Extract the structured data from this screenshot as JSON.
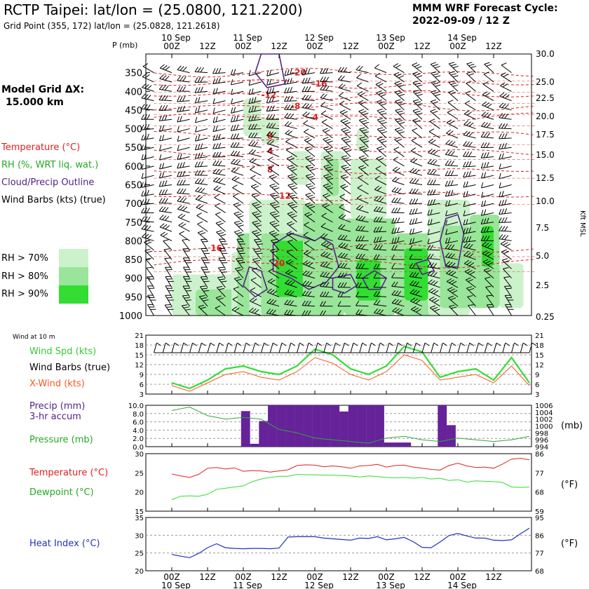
{
  "header": {
    "title": "RCTP Taipei:  lat/lon = (25.0800, 121.2200)",
    "subtitle": "Grid Point (355, 172) lat/lon = (25.0828, 121.2618)",
    "forecast_label": "MMM WRF Forecast Cycle:",
    "forecast_cycle": "2022-09-09 / 12  Z"
  },
  "side": {
    "grid_dx_label": "Model Grid ΔX:",
    "grid_dx_value": " 15.000 km",
    "legend_temperature": "Temperature (°C)",
    "legend_rh": "RH (%, WRT liq. wat.)",
    "legend_cloud": "Cloud/Precip Outline",
    "legend_wind": "Wind Barbs (kts) (true)",
    "rh_levels": [
      "RH > 70%",
      "RH > 80%",
      "RH > 90%"
    ],
    "colors": {
      "temperature": "#dd2222",
      "rh": "#22aa22",
      "cloud": "#552288",
      "wind": "#000000",
      "rh70": "#ccf2cc",
      "rh80": "#99e599",
      "rh90": "#33dd33"
    }
  },
  "time_axis": {
    "times": [
      "00Z",
      "12Z",
      "00Z",
      "12Z",
      "00Z",
      "12Z",
      "00Z",
      "12Z",
      "00Z",
      "12Z"
    ],
    "days": [
      "10 Sep",
      "11 Sep",
      "12 Sep",
      "13 Sep",
      "14 Sep"
    ]
  },
  "chart_data": [
    {
      "type": "heatmap",
      "ylabel_left": "P (mb)",
      "ylabel_right": "Kft MSL",
      "pressure_ticks": [
        "350",
        "400",
        "450",
        "500",
        "550",
        "600",
        "650",
        "700",
        "750",
        "800",
        "850",
        "900",
        "950",
        "1000"
      ],
      "height_ticks": [
        "30.0",
        "25.0",
        "22.5",
        "20.0",
        "17.5",
        "15.0",
        "12.5",
        "10.0",
        "7.5",
        "5.0",
        "2.5",
        "0.25"
      ],
      "temperature_labels": [
        "-20",
        "-16",
        "-12",
        "-8",
        "-4",
        "0",
        "4",
        "8",
        "12",
        "16",
        "20"
      ]
    },
    {
      "type": "line",
      "panel_title": "Wind at 10 m",
      "labels": [
        "Wind Spd (kts)",
        "Wind Barbs (true)",
        "X-Wind (kts)"
      ],
      "ylim": [
        0,
        21
      ],
      "yticks": [
        "21",
        "18",
        "15",
        "12",
        "9",
        "6",
        "3"
      ],
      "x": [
        0,
        6,
        12,
        18,
        24,
        30,
        36,
        42,
        48,
        54,
        60,
        66,
        72,
        78,
        84,
        90,
        96,
        102,
        108,
        114,
        120
      ],
      "series": [
        {
          "name": "Wind Spd (kts)",
          "color": "#33dd33",
          "values": [
            4,
            2,
            5,
            9,
            10,
            8,
            7,
            10,
            16,
            14,
            9,
            7,
            10,
            17,
            15,
            6,
            8,
            9,
            5,
            13,
            4
          ]
        },
        {
          "name": "X-Wind (kts)",
          "color": "#ff5522",
          "values": [
            3,
            1,
            4,
            7,
            8,
            6,
            5,
            8,
            13,
            11,
            7,
            5,
            8,
            14,
            12,
            5,
            6,
            7,
            4,
            10,
            3
          ]
        }
      ]
    },
    {
      "type": "bar",
      "labels": [
        "Precip (mm)",
        "3-hr accum",
        "Pressure (mb)"
      ],
      "ylim": [
        0,
        10
      ],
      "yticks_left": [
        "10.0",
        "8.0",
        "6.0",
        "4.0",
        "2.0",
        "0.0"
      ],
      "yticks_right": [
        "1006",
        "1004",
        "1002",
        "1000",
        "998",
        "996",
        "994"
      ],
      "right_unit": "(mb)",
      "bars": [
        {
          "x": 24,
          "value": 8.6
        },
        {
          "x": 27,
          "value": 0.7
        },
        {
          "x": 30,
          "value": 6.2
        },
        {
          "x": 33,
          "value": 10.0
        },
        {
          "x": 36,
          "value": 10.0
        },
        {
          "x": 39,
          "value": 10.0
        },
        {
          "x": 42,
          "value": 10.0
        },
        {
          "x": 45,
          "value": 10.0
        },
        {
          "x": 48,
          "value": 10.0
        },
        {
          "x": 51,
          "value": 10.0
        },
        {
          "x": 54,
          "value": 10.0
        },
        {
          "x": 57,
          "value": 8.5
        },
        {
          "x": 60,
          "value": 10.0
        },
        {
          "x": 63,
          "value": 10.0
        },
        {
          "x": 66,
          "value": 10.0
        },
        {
          "x": 69,
          "value": 10.0
        },
        {
          "x": 72,
          "value": 1.0
        },
        {
          "x": 75,
          "value": 1.0
        },
        {
          "x": 78,
          "value": 1.0
        },
        {
          "x": 84,
          "value": 0.0
        },
        {
          "x": 90,
          "value": 10.0
        },
        {
          "x": 93,
          "value": 5.2
        }
      ],
      "pressure": {
        "name": "Pressure (mb)",
        "color": "#33aa33",
        "x": [
          0,
          6,
          12,
          18,
          24,
          30,
          36,
          42,
          48,
          54,
          60,
          66,
          72,
          78,
          84,
          90,
          96,
          102,
          108,
          114,
          120
        ],
        "values": [
          1004.5,
          1005.5,
          1003,
          1002,
          1002.5,
          1002,
          999,
          998,
          996.5,
          996,
          995.5,
          995,
          996.5,
          997,
          996,
          995.5,
          996.5,
          996,
          995.5,
          996,
          997
        ]
      }
    },
    {
      "type": "line",
      "labels": [
        "Temperature (°C)",
        "Dewpoint (°C)"
      ],
      "ylim": [
        15,
        30
      ],
      "yticks_left": [
        "30",
        "25",
        "20",
        "15"
      ],
      "yticks_right": [
        "86",
        "77",
        "68",
        "59"
      ],
      "right_unit": "(°F)",
      "x": [
        0,
        3,
        6,
        9,
        12,
        15,
        18,
        21,
        24,
        27,
        30,
        33,
        36,
        39,
        42,
        45,
        48,
        51,
        54,
        57,
        60,
        63,
        66,
        69,
        72,
        75,
        78,
        81,
        84,
        87,
        90,
        93,
        96,
        99,
        102,
        105,
        108,
        111,
        114,
        117,
        120
      ],
      "series": [
        {
          "name": "Temperature (°C)",
          "color": "#dd2222",
          "values": [
            24.7,
            24.2,
            23.8,
            24.6,
            26.2,
            26.4,
            26.0,
            26.3,
            25.4,
            25.6,
            25.5,
            25.2,
            25.5,
            25.8,
            26.9,
            27.1,
            27.0,
            26.6,
            26.8,
            26.6,
            26.2,
            26.8,
            26.9,
            27.2,
            26.5,
            26.9,
            27.0,
            26.5,
            26.2,
            25.9,
            25.7,
            26.9,
            27.5,
            26.8,
            26.4,
            26.5,
            26.2,
            27.3,
            28.6,
            28.8,
            28.4
          ]
        },
        {
          "name": "Dewpoint (°C)",
          "color": "#33dd33",
          "values": [
            18.0,
            18.9,
            19.0,
            18.9,
            19.4,
            20.7,
            21.0,
            21.3,
            21.6,
            22.7,
            23.4,
            23.8,
            24.1,
            24.1,
            24.6,
            24.5,
            24.5,
            24.4,
            24.4,
            24.3,
            24.2,
            23.9,
            24.2,
            24.0,
            23.8,
            23.7,
            23.8,
            23.6,
            23.8,
            23.4,
            23.6,
            23.0,
            23.2,
            22.6,
            22.9,
            22.8,
            22.7,
            22.5,
            21.3,
            21.2,
            21.3
          ]
        }
      ]
    },
    {
      "type": "line",
      "labels": [
        "Heat Index (°C)"
      ],
      "ylim": [
        20,
        35
      ],
      "yticks_left": [
        "35",
        "30",
        "25",
        "20"
      ],
      "yticks_right": [
        "95",
        "86",
        "77",
        "68"
      ],
      "right_unit": "(°F)",
      "x": [
        0,
        3,
        6,
        9,
        12,
        15,
        18,
        21,
        24,
        27,
        30,
        33,
        36,
        39,
        42,
        45,
        48,
        51,
        54,
        57,
        60,
        63,
        66,
        69,
        72,
        75,
        78,
        81,
        84,
        87,
        90,
        93,
        96,
        99,
        102,
        105,
        108,
        111,
        114,
        117,
        120
      ],
      "series": [
        {
          "name": "Heat Index (°C)",
          "color": "#2233bb",
          "values": [
            24.6,
            24.1,
            23.7,
            24.9,
            26.5,
            27.6,
            26.5,
            26.3,
            26.2,
            26.3,
            26.3,
            26.2,
            26.4,
            29.5,
            29.6,
            29.6,
            29.6,
            29.2,
            29.0,
            28.8,
            28.6,
            29.2,
            29.1,
            29.6,
            28.7,
            29.0,
            29.4,
            28.2,
            26.6,
            26.5,
            28.1,
            29.9,
            30.5,
            29.8,
            29.2,
            29.2,
            28.6,
            28.5,
            28.7,
            30.4,
            32.0
          ]
        }
      ]
    }
  ]
}
